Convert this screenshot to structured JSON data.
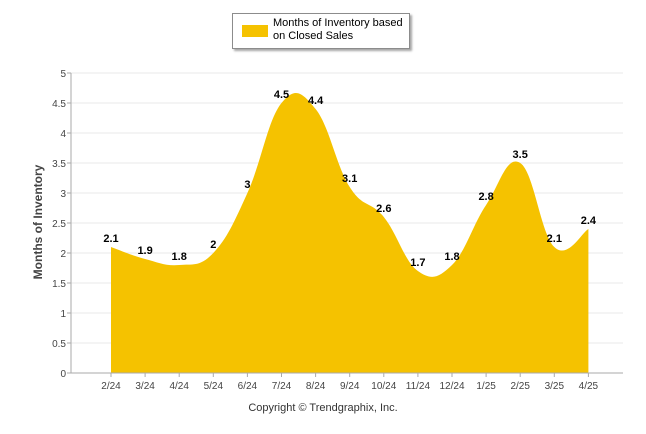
{
  "legend": {
    "label": "Months of Inventory based on Closed Sales"
  },
  "footer": {
    "copyright": "Copyright © Trendgraphix, Inc."
  },
  "colors": {
    "area": "#f5c200",
    "grid": "#e8e8e8",
    "axis": "#555555"
  },
  "chart_data": {
    "type": "area",
    "title": "",
    "xlabel": "",
    "ylabel": "Months of Inventory",
    "categories": [
      "2/24",
      "3/24",
      "4/24",
      "5/24",
      "6/24",
      "7/24",
      "8/24",
      "9/24",
      "10/24",
      "11/24",
      "12/24",
      "1/25",
      "2/25",
      "3/25",
      "4/25"
    ],
    "series": [
      {
        "name": "Months of Inventory based on Closed Sales",
        "values": [
          2.1,
          1.9,
          1.8,
          2,
          3,
          4.5,
          4.4,
          3.1,
          2.6,
          1.7,
          1.8,
          2.8,
          3.5,
          2.1,
          2.4
        ]
      }
    ],
    "ylim": [
      0,
      5
    ],
    "yticks": [
      "0",
      "0.5",
      "1",
      "1.5",
      "2",
      "2.5",
      "3",
      "3.5",
      "4",
      "4.5",
      "5"
    ],
    "grid": true,
    "legend_position": "top-center",
    "data_labels": true
  }
}
